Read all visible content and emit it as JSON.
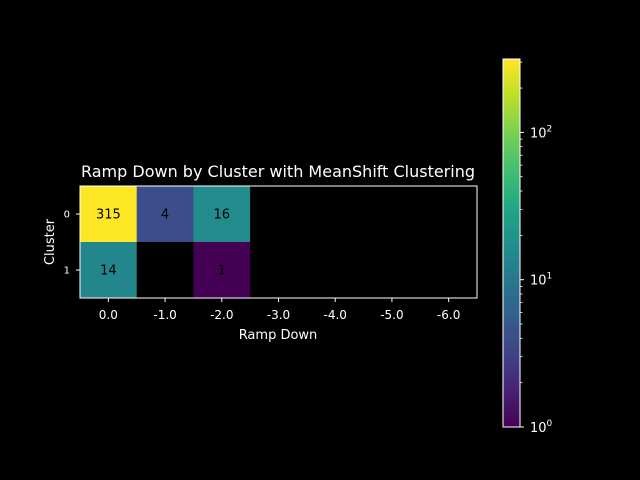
{
  "chart_data": {
    "type": "heatmap",
    "title": "Ramp Down by Cluster with MeanShift Clustering",
    "xlabel": "Ramp Down",
    "ylabel": "Cluster",
    "x_categories": [
      "0.0",
      "-1.0",
      "-2.0",
      "-3.0",
      "-4.0",
      "-5.0",
      "-6.0"
    ],
    "y_categories": [
      "0",
      "1"
    ],
    "values": [
      [
        315,
        4,
        16,
        null,
        null,
        null,
        null
      ],
      [
        14,
        null,
        1,
        null,
        null,
        null,
        null
      ]
    ],
    "colorbar": {
      "scale": "log",
      "range": [
        1,
        315
      ],
      "ticks": [
        {
          "value": 1,
          "base": "10",
          "exp": "0"
        },
        {
          "value": 10,
          "base": "10",
          "exp": "1"
        },
        {
          "value": 100,
          "base": "10",
          "exp": "2"
        }
      ]
    },
    "colormap": "viridis",
    "empty_color": "#000000",
    "text_color": "#ffffff",
    "cell_text_color": "#000000"
  }
}
